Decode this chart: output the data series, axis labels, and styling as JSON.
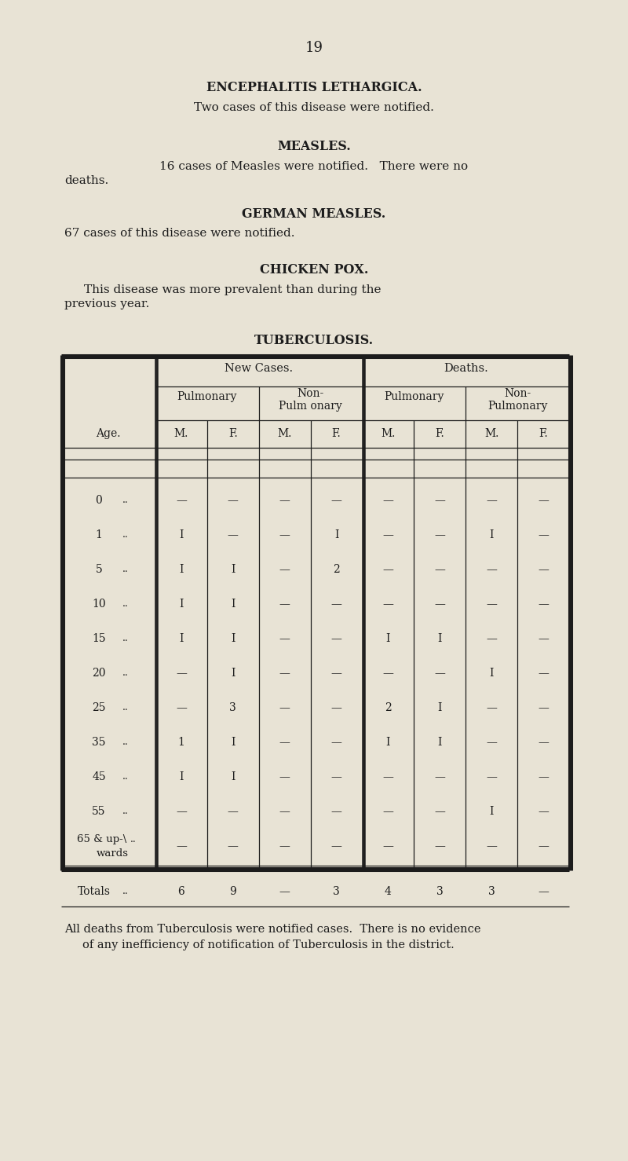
{
  "bg_color": "#e8e3d5",
  "page_number": "19",
  "enc_heading": "ENCEPHALITIS LETHARGICA.",
  "enc_body": "Two cases of this disease were notified.",
  "measles_heading": "MEASLES.",
  "measles_body1": "16 cases of Measles were notified.   There were no",
  "measles_body2": "deaths.",
  "german_heading": "GERMAN MEASLES.",
  "german_body": "67 cases of this disease were notified.",
  "chicken_heading": "CHICKEN POX.",
  "chicken_body1": "This disease was more prevalent than during the",
  "chicken_body2": "previous year.",
  "tb_heading": "TUBERCULOSIS.",
  "table_rows": [
    [
      "0",
      "—",
      "—",
      "—",
      "—",
      "—",
      "—",
      "—",
      "—"
    ],
    [
      "1",
      "I",
      "—",
      "—",
      "I",
      "—",
      "—",
      "I",
      "—"
    ],
    [
      "5",
      "I",
      "I",
      "—",
      "2",
      "—",
      "—",
      "—",
      "—"
    ],
    [
      "10",
      "I",
      "I",
      "—",
      "—",
      "—",
      "—",
      "—",
      "—"
    ],
    [
      "15",
      "I",
      "I",
      "—",
      "—",
      "I",
      "I",
      "—",
      "—"
    ],
    [
      "20",
      "—",
      "I",
      "—",
      "—",
      "—",
      "—",
      "I",
      "—"
    ],
    [
      "25",
      "—",
      "3",
      "—",
      "—",
      "2",
      "I",
      "—",
      "—"
    ],
    [
      "35",
      "1",
      "I",
      "—",
      "—",
      "I",
      "I",
      "—",
      "—"
    ],
    [
      "45",
      "I",
      "I",
      "—",
      "—",
      "—",
      "—",
      "—",
      "—"
    ],
    [
      "55",
      "—",
      "—",
      "—",
      "—",
      "—",
      "—",
      "I",
      "—"
    ],
    [
      "65 & up-wards",
      "—",
      "—",
      "—",
      "—",
      "—",
      "—",
      "—",
      "—"
    ]
  ],
  "totals_row": [
    "Totals",
    "6",
    "9",
    "—",
    "3",
    "4",
    "3",
    "3",
    "—"
  ],
  "footer1": "All deaths from Tuberculosis were notified cases.  There is no evidence",
  "footer2": "of any inefficiency of notification of Tuberculosis in the district."
}
